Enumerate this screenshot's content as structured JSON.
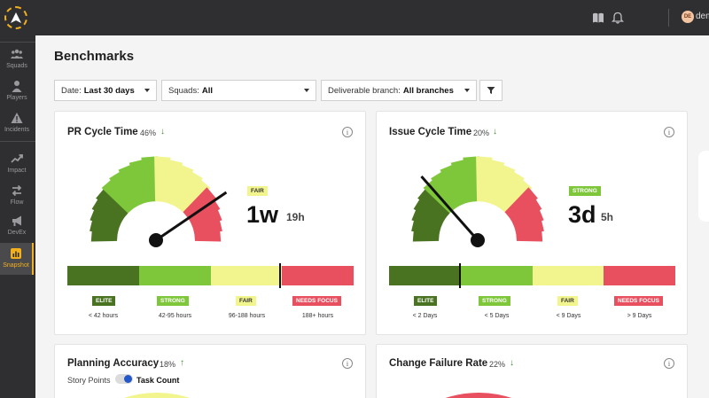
{
  "nav": {
    "items": [
      {
        "label": "Squads",
        "icon": "squads-icon"
      },
      {
        "label": "Players",
        "icon": "player-icon"
      },
      {
        "label": "Incidents",
        "icon": "warning-icon"
      },
      {
        "label": "Impact",
        "icon": "trend-icon"
      },
      {
        "label": "Flow",
        "icon": "flow-icon"
      },
      {
        "label": "DevEx",
        "icon": "megaphone-icon"
      },
      {
        "label": "Snapshot",
        "icon": "snapshot-icon",
        "active": true
      }
    ]
  },
  "topbar": {
    "icons": [
      "book-icon",
      "bell-icon"
    ],
    "avatar": "DE",
    "user": "demo"
  },
  "page": {
    "title": "Benchmarks"
  },
  "filters": {
    "date": {
      "label": "Date:",
      "value": "Last 30 days"
    },
    "squads": {
      "label": "Squads:",
      "value": "All"
    },
    "branch": {
      "label": "Deliverable branch:",
      "value": "All branches"
    }
  },
  "colors": {
    "elite": "#4a7321",
    "strong": "#7ec73a",
    "fair": "#f2f58d",
    "needs_focus": "#e8505f"
  },
  "cards": [
    {
      "title": "PR Cycle Time",
      "pct": "46%",
      "trend": "down",
      "status": "FAIR",
      "value_big": "1w",
      "value_small": "19h",
      "needle_fraction": 0.81,
      "levels": [
        "ELITE",
        "STRONG",
        "FAIR",
        "NEEDS FOCUS"
      ],
      "ranges": [
        "< 42 hours",
        "42-95 hours",
        "96-188 hours",
        "188+ hours"
      ],
      "bar_marker_fraction": 0.74
    },
    {
      "title": "Issue Cycle Time",
      "pct": "20%",
      "trend": "down",
      "status": "STRONG",
      "value_big": "3d",
      "value_small": "5h",
      "needle_fraction": 0.27,
      "levels": [
        "ELITE",
        "STRONG",
        "FAIR",
        "NEEDS FOCUS"
      ],
      "ranges": [
        "< 2 Days",
        "< 5 Days",
        "< 9 Days",
        "> 9 Days"
      ],
      "bar_marker_fraction": 0.25
    },
    {
      "title": "Planning Accuracy",
      "pct": "18%",
      "trend": "up",
      "toggle_left": "Story Points",
      "toggle_right": "Task Count"
    },
    {
      "title": "Change Failure Rate",
      "pct": "22%",
      "trend": "down"
    }
  ]
}
